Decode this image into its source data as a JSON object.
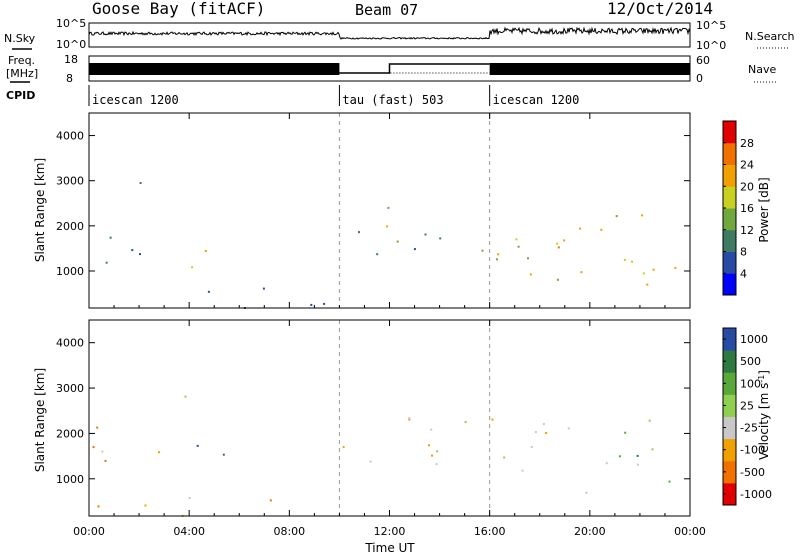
{
  "header": {
    "station": "Goose Bay (fitACF)",
    "beam": "Beam 07",
    "date": "12/Oct/2014"
  },
  "strip": {
    "nsky_label": "N.Sky",
    "nsky_ticks": [
      "10^5",
      "10^0"
    ],
    "nsearch_label": "N.Search",
    "nsearch_ticks": [
      "10^5",
      "10^0"
    ],
    "freq_label_1": "Freq.",
    "freq_label_2": "[MHz]",
    "freq_ticks": [
      "18",
      "8"
    ],
    "nave_label": "Nave",
    "nave_ticks": [
      "60",
      "0"
    ],
    "cpid_label": "CPID",
    "cpid_segments": [
      {
        "name": "icescan 1200",
        "start": 0,
        "end": 10
      },
      {
        "name": "tau (fast) 503",
        "start": 10,
        "end": 16
      },
      {
        "name": "icescan 1200",
        "start": 16,
        "end": 24
      }
    ]
  },
  "chart_data": [
    {
      "type": "heatmap",
      "title": "",
      "xlabel": "Time UT",
      "ylabel": "Slant Range [km]",
      "xticks": [
        "00:00",
        "04:00",
        "08:00",
        "12:00",
        "16:00",
        "20:00",
        "00:00"
      ],
      "xlim": [
        0,
        24
      ],
      "ylim": [
        180,
        4500
      ],
      "yticks": [
        "1000",
        "2000",
        "3000",
        "4000"
      ],
      "colorbar": {
        "label": "Power [dB]",
        "ticks": [
          "4",
          "8",
          "12",
          "16",
          "20",
          "24",
          "28"
        ],
        "range": [
          0,
          30
        ],
        "colors": [
          "#0000ff",
          "#274ba5",
          "#3f7a65",
          "#6fa83c",
          "#c8d020",
          "#f0a000",
          "#f07000",
          "#e00000"
        ]
      },
      "regions": [
        {
          "t0": 0.0,
          "t1": 2.5,
          "r0": 900,
          "r1": 2300,
          "level": 2
        },
        {
          "t0": 1.5,
          "t1": 3.0,
          "r0": 2600,
          "r1": 3000,
          "level": 1
        },
        {
          "t0": 3.0,
          "t1": 6.0,
          "r0": 1100,
          "r1": 1700,
          "level": 4
        },
        {
          "t0": 4.5,
          "t1": 5.5,
          "r0": 1200,
          "r1": 1500,
          "level": 6
        },
        {
          "t0": 0.0,
          "t1": 9.5,
          "r0": 200,
          "r1": 650,
          "level": 1
        },
        {
          "t0": 10.0,
          "t1": 12.5,
          "r0": 1100,
          "r1": 2600,
          "level": 3
        },
        {
          "t0": 11.5,
          "t1": 12.5,
          "r0": 1600,
          "r1": 2300,
          "level": 6
        },
        {
          "t0": 12.5,
          "t1": 16.0,
          "r0": 1300,
          "r1": 2200,
          "level": 2
        },
        {
          "t0": 16.0,
          "t1": 23.6,
          "r0": 700,
          "r1": 2500,
          "level": 4
        },
        {
          "t0": 18.0,
          "t1": 22.5,
          "r0": 1000,
          "r1": 1800,
          "level": 5
        },
        {
          "t0": 20.0,
          "t1": 22.5,
          "r0": 2200,
          "r1": 2900,
          "level": 4
        }
      ]
    },
    {
      "type": "heatmap",
      "title": "",
      "xlabel": "Time UT",
      "ylabel": "Slant Range [km]",
      "xticks": [
        "00:00",
        "04:00",
        "08:00",
        "12:00",
        "16:00",
        "20:00",
        "00:00"
      ],
      "xlim": [
        0,
        24
      ],
      "ylim": [
        180,
        4500
      ],
      "yticks": [
        "1000",
        "2000",
        "3000",
        "4000"
      ],
      "colorbar": {
        "label": "Velocity [m s^-1]",
        "ticks": [
          "1000",
          "500",
          "100",
          "25",
          "-25",
          "-100",
          "-500",
          "-1000"
        ],
        "colors": [
          "#274ba5",
          "#2e7a40",
          "#5aa83a",
          "#8fd050",
          "#c8c8c8",
          "#f0a000",
          "#f07000",
          "#e00000"
        ]
      },
      "regions": [
        {
          "t0": 0.0,
          "t1": 3.0,
          "r0": 900,
          "r1": 2300,
          "level": 5
        },
        {
          "t0": 3.0,
          "t1": 6.0,
          "r0": 1200,
          "r1": 1800,
          "level": 0
        },
        {
          "t0": 0.5,
          "t1": 4.0,
          "r0": 2700,
          "r1": 3000,
          "level": 4
        },
        {
          "t0": 0.0,
          "t1": 9.5,
          "r0": 200,
          "r1": 700,
          "level": 5
        },
        {
          "t0": 10.0,
          "t1": 16.0,
          "r0": 1100,
          "r1": 2400,
          "level": 4
        },
        {
          "t0": 10.0,
          "t1": 11.0,
          "r0": 1400,
          "r1": 2000,
          "level": 6
        },
        {
          "t0": 16.0,
          "t1": 22.5,
          "r0": 700,
          "r1": 2500,
          "level": 4
        },
        {
          "t0": 21.0,
          "t1": 23.5,
          "r0": 900,
          "r1": 2200,
          "level": 2
        }
      ]
    }
  ]
}
